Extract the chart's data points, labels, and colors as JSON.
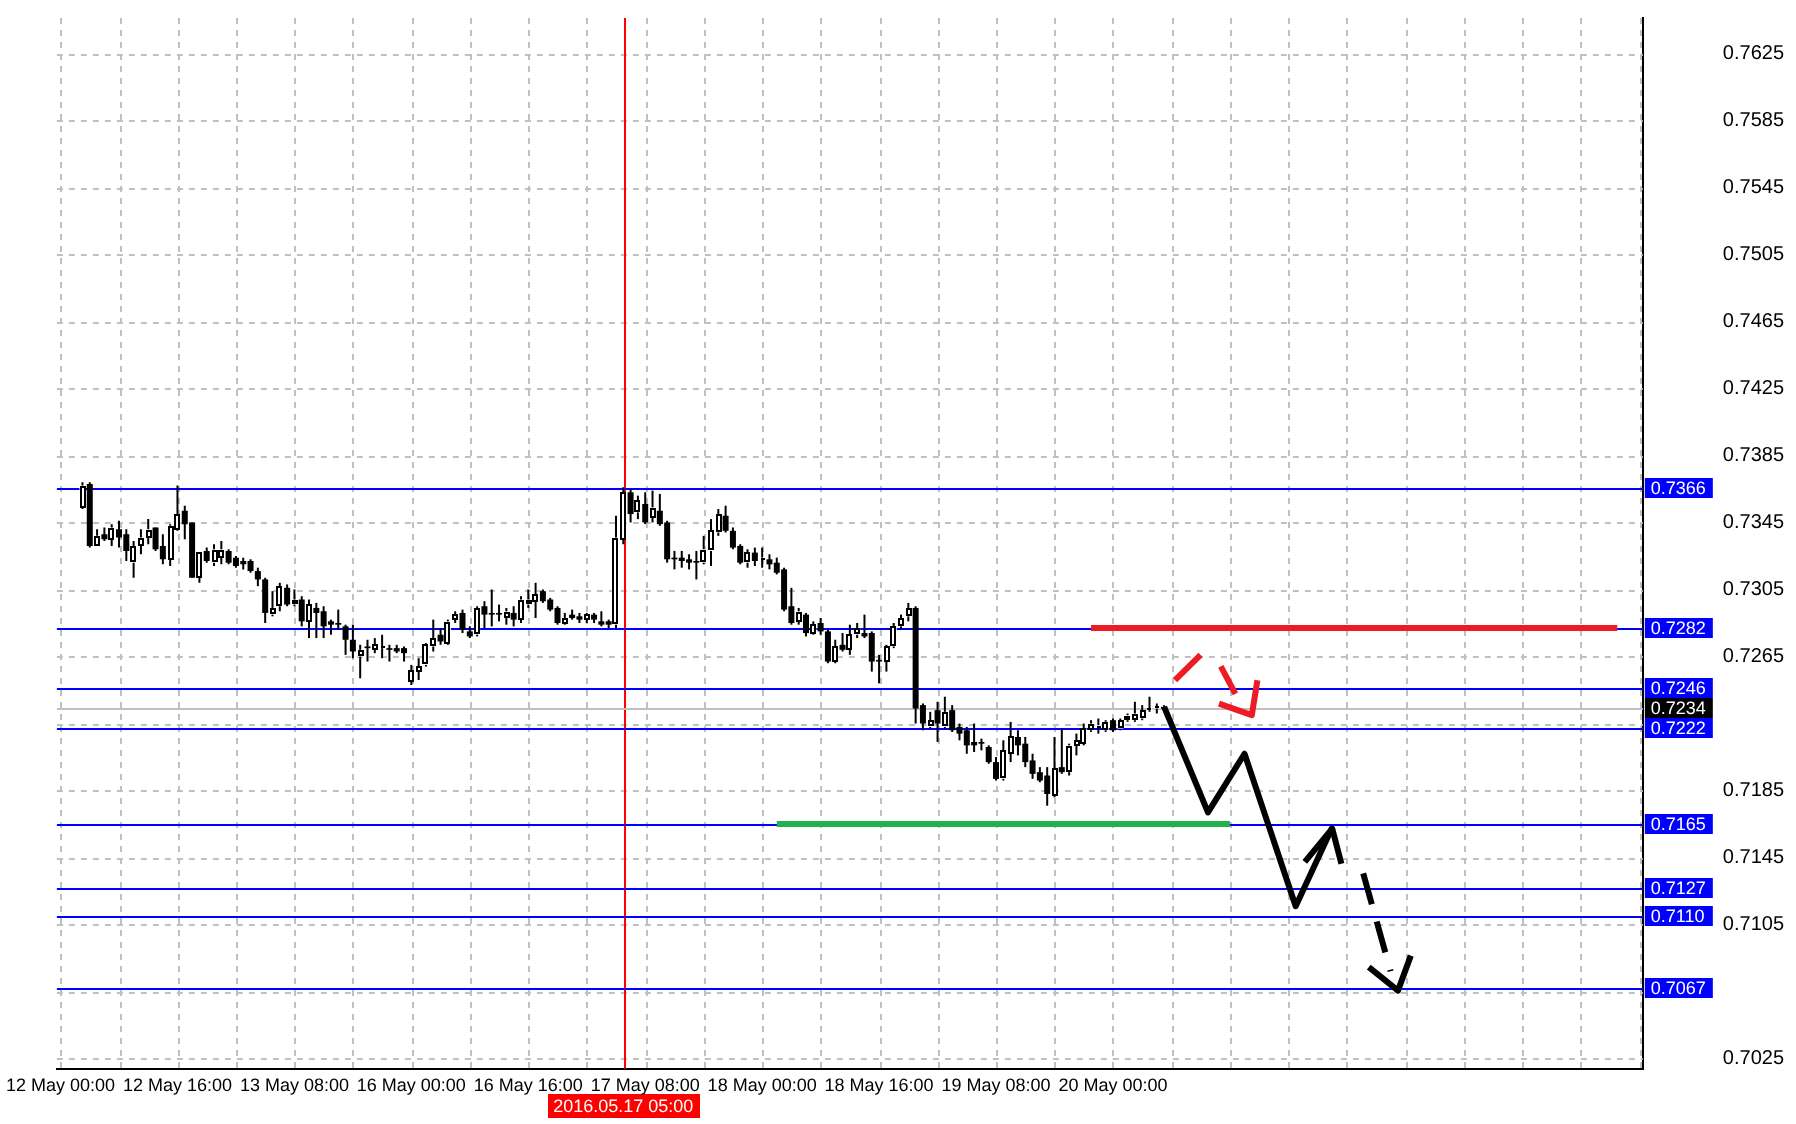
{
  "chart_data": {
    "type": "candlestick",
    "categories": [
      "12 May 00:00",
      null,
      null,
      null,
      null,
      null,
      null,
      null,
      null,
      null,
      null,
      null,
      null,
      null,
      null,
      null,
      "12 May 16:00",
      null,
      null,
      null,
      null,
      null,
      null,
      null,
      null,
      null,
      null,
      null,
      null,
      null,
      null,
      null,
      "13 May 08:00",
      null,
      null,
      null,
      null,
      null,
      null,
      null,
      null,
      null,
      null,
      null,
      null,
      null,
      null,
      null,
      "16 May 00:00",
      null,
      null,
      null,
      null,
      null,
      null,
      null,
      null,
      null,
      null,
      null,
      null,
      null,
      null,
      null,
      "16 May 16:00",
      null,
      null,
      null,
      null,
      null,
      null,
      null,
      null,
      null,
      null,
      null,
      null,
      "2016.05.17 05:00",
      null,
      null,
      "17 May 08:00",
      null,
      null,
      null,
      null,
      null,
      null,
      null,
      null,
      null,
      null,
      null,
      null,
      null,
      null,
      null,
      "18 May 00:00",
      null,
      null,
      null,
      null,
      null,
      null,
      null,
      null,
      null,
      null,
      null,
      null,
      null,
      null,
      null,
      "18 May 16:00",
      null,
      null,
      null,
      null,
      null,
      null,
      null,
      null,
      null,
      null,
      null,
      null,
      null,
      null,
      null,
      "19 May 08:00",
      null,
      null,
      null,
      null,
      null,
      null,
      null,
      null,
      null,
      null,
      null,
      null,
      null,
      null,
      null,
      "20 May 00:00",
      null,
      null,
      null,
      null,
      null,
      null,
      null,
      null,
      null,
      null,
      null,
      null,
      null,
      null,
      null,
      null,
      null,
      null,
      null,
      null,
      null,
      null,
      null,
      null,
      null,
      null,
      null,
      null,
      null,
      null,
      null,
      null,
      null,
      null,
      null,
      null,
      null,
      null,
      null,
      null,
      null,
      null,
      null,
      null,
      null,
      null,
      null,
      null,
      null,
      null,
      null,
      null,
      null,
      null,
      null,
      null,
      null,
      null,
      null,
      null,
      null,
      null,
      null,
      null,
      null,
      null,
      null,
      null,
      null,
      null,
      null,
      null
    ],
    "ohlc": [
      null,
      null,
      null,
      [
        0.7354,
        0.7369,
        0.7353,
        0.7367
      ],
      [
        0.7368,
        0.7369,
        0.733,
        0.7331
      ],
      [
        0.7331,
        0.7341,
        0.7331,
        0.7337
      ],
      [
        0.7338,
        0.7342,
        0.7334,
        0.7335
      ],
      [
        0.7335,
        0.7344,
        0.7331,
        0.7342
      ],
      [
        0.7341,
        0.7346,
        0.733,
        0.7336
      ],
      [
        0.7338,
        0.7341,
        0.7322,
        0.7328
      ],
      [
        0.7321,
        0.7334,
        0.7312,
        0.7331
      ],
      [
        0.7331,
        0.7341,
        0.7326,
        0.7336
      ],
      [
        0.7336,
        0.7347,
        0.7332,
        0.7341
      ],
      [
        0.7342,
        0.7342,
        0.7328,
        0.7329
      ],
      [
        0.7331,
        0.7338,
        0.732,
        0.7323
      ],
      [
        0.7323,
        0.7344,
        0.7319,
        0.7343
      ],
      [
        0.7341,
        0.7367,
        0.734,
        0.735
      ],
      [
        0.7352,
        0.7355,
        0.7335,
        0.7344
      ],
      [
        0.7345,
        0.7345,
        0.7312,
        0.7312
      ],
      [
        0.7312,
        0.7327,
        0.7309,
        0.7327
      ],
      [
        0.7328,
        0.733,
        0.7321,
        0.7322
      ],
      [
        0.7321,
        0.7332,
        0.7319,
        0.7329
      ],
      [
        0.7324,
        0.7334,
        0.732,
        0.7329
      ],
      [
        0.7328,
        0.7329,
        0.732,
        0.7321
      ],
      [
        0.7324,
        0.7325,
        0.7318,
        0.7319
      ],
      [
        0.7322,
        0.7324,
        0.7317,
        0.732
      ],
      [
        0.7322,
        0.7323,
        0.7315,
        0.7316
      ],
      [
        0.7316,
        0.7318,
        0.7307,
        0.7311
      ],
      [
        0.7311,
        0.7312,
        0.7285,
        0.7291
      ],
      [
        0.729,
        0.7304,
        0.7289,
        0.7294
      ],
      [
        0.7295,
        0.7309,
        0.7292,
        0.7307
      ],
      [
        0.7306,
        0.7308,
        0.7295,
        0.7296
      ],
      [
        0.7296,
        0.7305,
        0.7295,
        0.7299
      ],
      [
        0.7299,
        0.7301,
        0.7283,
        0.7286
      ],
      [
        0.7286,
        0.7299,
        0.7276,
        0.7296
      ],
      [
        0.7294,
        0.7297,
        0.7276,
        0.7291
      ],
      [
        0.7292,
        0.7295,
        0.7276,
        0.7283
      ],
      [
        0.7286,
        0.7287,
        0.7278,
        0.7284
      ],
      [
        0.7285,
        0.7293,
        0.7281,
        0.7284
      ],
      [
        0.7283,
        0.7284,
        0.7266,
        0.7275
      ],
      [
        0.7275,
        0.7284,
        0.7264,
        0.7268
      ],
      [
        0.7265,
        0.7272,
        0.7252,
        0.7269
      ],
      [
        0.7271,
        0.7275,
        0.7262,
        0.727
      ],
      [
        0.7269,
        0.7276,
        0.7267,
        0.7272
      ],
      [
        0.727,
        0.7278,
        0.7264,
        0.7271
      ],
      [
        0.727,
        0.7272,
        0.7262,
        0.7269
      ],
      [
        0.727,
        0.7272,
        0.7267,
        0.7268
      ],
      [
        0.727,
        0.7271,
        0.7262,
        0.7267
      ],
      [
        0.725,
        0.726,
        0.7248,
        0.7257
      ],
      [
        0.7256,
        0.7264,
        0.7251,
        0.7259
      ],
      [
        0.726,
        0.7273,
        0.7259,
        0.7272
      ],
      [
        0.7271,
        0.7287,
        0.7268,
        0.7276
      ],
      [
        0.7278,
        0.7282,
        0.7272,
        0.7274
      ],
      [
        0.7273,
        0.7287,
        0.7272,
        0.7286
      ],
      [
        0.7287,
        0.7292,
        0.7285,
        0.729
      ],
      [
        0.7291,
        0.7293,
        0.7279,
        0.7281
      ],
      [
        0.728,
        0.7283,
        0.7276,
        0.7277
      ],
      [
        0.7278,
        0.7295,
        0.7277,
        0.7294
      ],
      [
        0.7295,
        0.7298,
        0.7282,
        0.729
      ],
      [
        0.7291,
        0.7305,
        0.7283,
        0.729
      ],
      [
        0.7291,
        0.7296,
        0.7286,
        0.729
      ],
      [
        0.7288,
        0.7294,
        0.7284,
        0.7292
      ],
      [
        0.7291,
        0.7295,
        0.7283,
        0.7287
      ],
      [
        0.7287,
        0.7301,
        0.7285,
        0.7299
      ],
      [
        0.7296,
        0.7305,
        0.7294,
        0.7299
      ],
      [
        0.7298,
        0.7309,
        0.7288,
        0.7302
      ],
      [
        0.7304,
        0.7305,
        0.7297,
        0.7298
      ],
      [
        0.7299,
        0.73,
        0.7292,
        0.7293
      ],
      [
        0.7294,
        0.7295,
        0.7284,
        0.7285
      ],
      [
        0.7285,
        0.7291,
        0.7284,
        0.7288
      ],
      [
        0.729,
        0.7293,
        0.7287,
        0.7288
      ],
      [
        0.7289,
        0.7291,
        0.7285,
        0.7287
      ],
      [
        0.7287,
        0.7291,
        0.7285,
        0.729
      ],
      [
        0.729,
        0.7291,
        0.7285,
        0.7287
      ],
      [
        0.7286,
        0.7292,
        0.7283,
        0.7284
      ],
      [
        0.7286,
        0.7287,
        0.7282,
        0.7284
      ],
      [
        0.7284,
        0.7349,
        0.7282,
        0.7336
      ],
      [
        0.7335,
        0.7366,
        0.7332,
        0.7363
      ],
      [
        0.7363,
        0.7365,
        0.7345,
        0.735
      ],
      [
        0.7351,
        0.7361,
        0.7347,
        0.7358
      ],
      [
        0.7356,
        0.7363,
        0.7344,
        0.7345
      ],
      [
        0.7348,
        0.7364,
        0.7345,
        0.7354
      ],
      [
        0.7352,
        0.7362,
        0.7343,
        0.7344
      ],
      [
        0.7345,
        0.7346,
        0.7321,
        0.7323
      ],
      [
        0.7324,
        0.7328,
        0.7317,
        0.7323
      ],
      [
        0.7324,
        0.7328,
        0.7318,
        0.7322
      ],
      [
        0.7323,
        0.7326,
        0.7317,
        0.7321
      ],
      [
        0.7322,
        0.7328,
        0.7311,
        0.7321
      ],
      [
        0.7321,
        0.7337,
        0.732,
        0.7329
      ],
      [
        0.7328,
        0.7347,
        0.7319,
        0.734
      ],
      [
        0.7339,
        0.7353,
        0.7337,
        0.735
      ],
      [
        0.7349,
        0.7355,
        0.7339,
        0.734
      ],
      [
        0.734,
        0.7342,
        0.7329,
        0.733
      ],
      [
        0.7331,
        0.7332,
        0.732,
        0.7321
      ],
      [
        0.7321,
        0.7329,
        0.7318,
        0.7327
      ],
      [
        0.7327,
        0.733,
        0.7319,
        0.7322
      ],
      [
        0.7323,
        0.733,
        0.7318,
        0.7324
      ],
      [
        0.7323,
        0.7326,
        0.7317,
        0.732
      ],
      [
        0.7321,
        0.7324,
        0.7314,
        0.7315
      ],
      [
        0.7317,
        0.7318,
        0.7292,
        0.7293
      ],
      [
        0.7295,
        0.7306,
        0.7284,
        0.7285
      ],
      [
        0.7286,
        0.7294,
        0.7284,
        0.7292
      ],
      [
        0.729,
        0.7291,
        0.7277,
        0.7279
      ],
      [
        0.7279,
        0.7286,
        0.7278,
        0.7284
      ],
      [
        0.7285,
        0.7288,
        0.7278,
        0.728
      ],
      [
        0.728,
        0.7281,
        0.7261,
        0.7262
      ],
      [
        0.7262,
        0.7275,
        0.7261,
        0.7271
      ],
      [
        0.7272,
        0.7279,
        0.7268,
        0.7269
      ],
      [
        0.7269,
        0.7284,
        0.7266,
        0.7278
      ],
      [
        0.7278,
        0.7285,
        0.7276,
        0.7282
      ],
      [
        0.7279,
        0.729,
        0.7276,
        0.7277
      ],
      [
        0.7279,
        0.728,
        0.7256,
        0.7262
      ],
      [
        0.7263,
        0.7266,
        0.7249,
        0.7262
      ],
      [
        0.7262,
        0.7272,
        0.7256,
        0.7271
      ],
      [
        0.7271,
        0.7285,
        0.727,
        0.7283
      ],
      [
        0.7283,
        0.729,
        0.7281,
        0.7288
      ],
      [
        0.7289,
        0.7297,
        0.7286,
        0.7294
      ],
      [
        0.7294,
        0.7295,
        0.7225,
        0.7234
      ],
      [
        0.7236,
        0.7237,
        0.7221,
        0.7225
      ],
      [
        0.7223,
        0.7232,
        0.7222,
        0.7227
      ],
      [
        0.7233,
        0.7238,
        0.7214,
        0.7225
      ],
      [
        0.7223,
        0.7241,
        0.7222,
        0.7232
      ],
      [
        0.7233,
        0.7236,
        0.722,
        0.7221
      ],
      [
        0.7223,
        0.7225,
        0.7215,
        0.7219
      ],
      [
        0.7221,
        0.7223,
        0.7207,
        0.7212
      ],
      [
        0.7214,
        0.7225,
        0.7208,
        0.7212
      ],
      [
        0.7214,
        0.7216,
        0.7209,
        0.7213
      ],
      [
        0.7211,
        0.7212,
        0.7201,
        0.7202
      ],
      [
        0.7202,
        0.7205,
        0.7191,
        0.7192
      ],
      [
        0.7192,
        0.7215,
        0.7191,
        0.7209
      ],
      [
        0.7207,
        0.7226,
        0.7202,
        0.7217
      ],
      [
        0.7217,
        0.7221,
        0.7206,
        0.7212
      ],
      [
        0.7213,
        0.7217,
        0.7199,
        0.7202
      ],
      [
        0.7203,
        0.7207,
        0.7192,
        0.7195
      ],
      [
        0.7196,
        0.7199,
        0.719,
        0.7191
      ],
      [
        0.7194,
        0.7199,
        0.7176,
        0.7183
      ],
      [
        0.7182,
        0.7217,
        0.7181,
        0.7198
      ],
      [
        0.7199,
        0.7222,
        0.7195,
        0.7196
      ],
      [
        0.7196,
        0.7213,
        0.7194,
        0.7212
      ],
      [
        0.7212,
        0.7219,
        0.7206,
        0.7215
      ],
      [
        0.7213,
        0.7225,
        0.7212,
        0.7222
      ],
      [
        0.7221,
        0.7227,
        0.722,
        0.7225
      ],
      [
        0.7223,
        0.7228,
        0.7219,
        0.7224
      ],
      [
        0.7221,
        0.7227,
        0.722,
        0.7226
      ],
      [
        0.7227,
        0.7228,
        0.722,
        0.7221
      ],
      [
        0.7222,
        0.7228,
        0.7221,
        0.7227
      ],
      [
        0.7227,
        0.7231,
        0.7226,
        0.723
      ],
      [
        0.7227,
        0.7238,
        0.7226,
        0.7231
      ],
      [
        0.7228,
        0.7236,
        0.7227,
        0.7233
      ],
      [
        0.7233,
        0.7241,
        0.7232,
        0.7234
      ],
      [
        0.7234,
        0.7237,
        0.7231,
        0.7235
      ],
      [
        0.7235,
        0.7236,
        0.7232,
        0.7234
      ],
      null,
      null,
      null,
      null,
      null,
      null,
      null,
      null,
      null,
      null,
      null,
      null,
      null,
      null,
      null,
      null,
      null,
      null,
      null,
      null,
      null,
      null,
      null,
      null,
      null,
      null,
      null,
      null,
      null,
      null,
      null,
      null,
      null,
      null,
      null,
      null,
      null,
      null,
      null,
      null,
      null,
      null,
      null,
      null,
      null,
      null,
      null,
      null,
      null,
      null,
      null,
      null,
      null,
      null,
      null,
      null,
      null,
      null,
      null,
      null,
      null,
      null,
      null,
      null,
      null
    ],
    "colors": [
      null,
      null,
      null,
      "#ffffff",
      "#000000",
      "#ffffff",
      "#000000",
      "#ffffff",
      "#000000",
      "#000000",
      "#ffffff",
      "#ffffff",
      "#ffffff",
      "#000000",
      "#000000",
      "#ffffff",
      "#ffffff",
      "#000000",
      "#000000",
      "#ffffff",
      "#000000",
      "#ffffff",
      "#ffffff",
      "#000000",
      "#000000",
      "#000000",
      "#000000",
      "#000000",
      "#000000",
      "#ffffff",
      "#ffffff",
      "#000000",
      "#ffffff",
      "#000000",
      "#ffffff",
      "#000000",
      "#000000",
      "#000000",
      "#000000",
      "#000000",
      "#000000",
      "#ffffff",
      "#000000",
      "#ffffff",
      "#ffffff",
      "#000000",
      "#000000",
      "#000000",
      "#ffffff",
      "#ffffff",
      "#ffffff",
      "#ffffff",
      "#000000",
      "#ffffff",
      "#ffffff",
      "#000000",
      "#000000",
      "#ffffff",
      "#000000",
      "#000000",
      "#000000",
      "#ffffff",
      "#000000",
      "#ffffff",
      "#ffffff",
      "#ffffff",
      "#000000",
      "#000000",
      "#000000",
      "#ffffff",
      "#000000",
      "#000000",
      "#ffffff",
      "#000000",
      "#000000",
      "#000000",
      "#ffffff",
      "#ffffff",
      "#000000",
      "#ffffff",
      "#000000",
      "#ffffff",
      "#000000",
      "#000000",
      "#000000",
      "#000000",
      "#000000",
      "#000000",
      "#ffffff",
      "#ffffff",
      "#ffffff",
      "#000000",
      "#000000",
      "#000000",
      "#ffffff",
      "#000000",
      "#ffffff",
      "#000000",
      "#000000",
      "#000000",
      "#000000",
      "#ffffff",
      "#000000",
      "#ffffff",
      "#000000",
      "#000000",
      "#ffffff",
      "#000000",
      "#ffffff",
      "#ffffff",
      "#000000",
      "#000000",
      "#000000",
      "#ffffff",
      "#ffffff",
      "#ffffff",
      "#ffffff",
      "#000000",
      "#000000",
      "#ffffff",
      "#000000",
      "#ffffff",
      "#000000",
      "#000000",
      "#000000",
      "#000000",
      "#000000",
      "#000000",
      "#000000",
      "#ffffff",
      "#ffffff",
      "#000000",
      "#000000",
      "#000000",
      "#000000",
      "#000000",
      "#ffffff",
      "#000000",
      "#ffffff",
      "#ffffff",
      "#ffffff",
      "#ffffff",
      "#ffffff",
      "#ffffff",
      "#000000",
      "#ffffff",
      "#ffffff",
      "#ffffff",
      "#ffffff",
      "#ffffff",
      "#ffffff",
      "#000000",
      null,
      null,
      null,
      null,
      null,
      null,
      null,
      null,
      null,
      null,
      null,
      null,
      null,
      null,
      null,
      null,
      null,
      null,
      null,
      null,
      null,
      null,
      null,
      null,
      null,
      null,
      null,
      null,
      null,
      null,
      null,
      null,
      null,
      null,
      null,
      null,
      null,
      null,
      null,
      null,
      null,
      null,
      null,
      null,
      null,
      null,
      null,
      null,
      null,
      null,
      null,
      null,
      null,
      null,
      null,
      null,
      null,
      null,
      null,
      null,
      null,
      null,
      null,
      null,
      null
    ],
    "series": [
      {
        "type": "line",
        "color": "#ed1c24",
        "values": [
          null,
          null,
          null,
          null,
          null,
          null,
          null,
          null,
          null,
          null,
          null,
          null,
          null,
          null,
          null,
          null,
          null,
          null,
          null,
          null,
          null,
          null,
          null,
          null,
          null,
          null,
          null,
          null,
          null,
          null,
          null,
          null,
          null,
          null,
          null,
          null,
          null,
          null,
          null,
          null,
          null,
          null,
          null,
          null,
          null,
          null,
          null,
          null,
          null,
          null,
          null,
          null,
          null,
          null,
          null,
          null,
          null,
          null,
          null,
          null,
          null,
          null,
          null,
          null,
          null,
          null,
          null,
          null,
          null,
          null,
          null,
          null,
          null,
          null,
          null,
          null,
          null,
          null,
          null,
          null,
          null,
          null,
          null,
          null,
          null,
          null,
          null,
          null,
          null,
          null,
          null,
          null,
          null,
          null,
          null,
          null,
          null,
          null,
          null,
          null,
          null,
          null,
          null,
          null,
          null,
          null,
          null,
          null,
          null,
          null,
          null,
          null,
          null,
          null,
          null,
          null,
          null,
          null,
          null,
          null,
          null,
          null,
          null,
          null,
          null,
          null,
          null,
          null,
          null,
          null,
          null,
          null,
          null,
          null,
          null,
          null,
          null,
          null,
          null,
          null,
          null,
          0.7282,
          0.7282,
          0.7282,
          0.7282,
          0.7282,
          0.7282,
          0.7282,
          0.7282,
          0.7282,
          0.7282,
          0.7282,
          0.7282,
          0.7282,
          0.7282,
          0.7282,
          0.7282,
          0.7282,
          0.7282,
          0.7282,
          0.7282,
          0.7282,
          0.7282,
          0.7282,
          0.7282,
          0.7282,
          0.7282,
          0.7282,
          0.7282,
          0.7282,
          0.7282,
          0.7282,
          0.7282,
          0.7282,
          0.7282,
          0.7282,
          0.7282,
          0.7282,
          0.7282,
          0.7282,
          0.7282,
          0.7282,
          0.7282,
          0.7282,
          0.7282,
          0.7282,
          0.7282,
          0.7282,
          0.7282,
          0.7282,
          0.7282,
          0.7282,
          0.7282,
          0.7282,
          0.7282,
          0.7282,
          0.7282,
          0.7282,
          0.7282,
          0.7282,
          0.7282,
          0.7282,
          0.7282,
          0.7282,
          0.7282,
          0.7282,
          0.7282,
          0.7282,
          0.7282,
          0.7282,
          0.7282,
          0.7282,
          0.7282,
          0.7282,
          null,
          null,
          null
        ]
      },
      {
        "type": "line",
        "color": "#22b14c",
        "values": [
          null,
          null,
          null,
          null,
          null,
          null,
          null,
          null,
          null,
          null,
          null,
          null,
          null,
          null,
          null,
          null,
          null,
          null,
          null,
          null,
          null,
          null,
          null,
          null,
          null,
          null,
          null,
          null,
          null,
          null,
          null,
          null,
          null,
          null,
          null,
          null,
          null,
          null,
          null,
          null,
          null,
          null,
          null,
          null,
          null,
          null,
          null,
          null,
          null,
          null,
          null,
          null,
          null,
          null,
          null,
          null,
          null,
          null,
          null,
          null,
          null,
          null,
          null,
          null,
          null,
          null,
          null,
          null,
          null,
          null,
          null,
          null,
          null,
          null,
          null,
          null,
          null,
          null,
          null,
          null,
          null,
          null,
          null,
          null,
          null,
          null,
          null,
          null,
          null,
          null,
          null,
          null,
          null,
          null,
          null,
          null,
          null,
          null,
          0.7165,
          0.7165,
          0.7165,
          0.7165,
          0.7165,
          0.7165,
          0.7165,
          0.7165,
          0.7165,
          0.7165,
          0.7165,
          0.7165,
          0.7165,
          0.7165,
          0.7165,
          0.7165,
          0.7165,
          0.7165,
          0.7165,
          0.7165,
          0.7165,
          0.7165,
          0.7165,
          0.7165,
          0.7165,
          0.7165,
          0.7165,
          0.7165,
          0.7165,
          0.7165,
          0.7165,
          0.7165,
          0.7165,
          0.7165,
          0.7165,
          0.7165,
          0.7165,
          0.7165,
          0.7165,
          0.7165,
          0.7165,
          0.7165,
          0.7165,
          0.7165,
          0.7165,
          0.7165,
          0.7165,
          0.7165,
          0.7165,
          0.7165,
          0.7165,
          0.7165,
          0.7165,
          0.7165,
          0.7165,
          0.7165,
          0.7165,
          0.7165,
          0.7165,
          0.7165,
          0.7165,
          0.7165,
          0.7165,
          null,
          null,
          null,
          null,
          null,
          null,
          null,
          null,
          null,
          null,
          null,
          null,
          null,
          null,
          null,
          null,
          null,
          null,
          null,
          null,
          null,
          null,
          null,
          null,
          null,
          null,
          null,
          null,
          null,
          null,
          null,
          null,
          null,
          null,
          null,
          null,
          null,
          null,
          null,
          null,
          null,
          null,
          null,
          null,
          null,
          null,
          null,
          null,
          null,
          null,
          null,
          null,
          null,
          null,
          null,
          null
        ]
      },
      {
        "type": "line",
        "color": "#000000",
        "values": [
          null,
          null,
          null,
          null,
          null,
          null,
          null,
          null,
          null,
          null,
          null,
          null,
          null,
          null,
          null,
          null,
          null,
          null,
          null,
          null,
          null,
          null,
          null,
          null,
          null,
          null,
          null,
          null,
          null,
          null,
          null,
          null,
          null,
          null,
          null,
          null,
          null,
          null,
          null,
          null,
          null,
          null,
          null,
          null,
          null,
          null,
          null,
          null,
          null,
          null,
          null,
          null,
          null,
          null,
          null,
          null,
          null,
          null,
          null,
          null,
          null,
          null,
          null,
          null,
          null,
          null,
          null,
          null,
          null,
          null,
          null,
          null,
          null,
          null,
          null,
          null,
          null,
          null,
          null,
          null,
          null,
          null,
          null,
          null,
          null,
          null,
          null,
          null,
          null,
          null,
          null,
          null,
          null,
          null,
          null,
          null,
          null,
          null,
          null,
          null,
          null,
          null,
          null,
          null,
          null,
          null,
          null,
          null,
          null,
          null,
          null,
          null,
          null,
          null,
          null,
          null,
          null,
          null,
          null,
          null,
          null,
          null,
          null,
          null,
          null,
          null,
          null,
          null,
          null,
          null,
          null,
          null,
          null,
          null,
          null,
          null,
          null,
          null,
          null,
          null,
          null,
          null,
          null,
          null,
          null,
          null,
          null,
          null,
          null,
          null,
          null,
          0.7235,
          null,
          null,
          null,
          null,
          null,
          0.7172,
          null,
          null,
          null,
          null,
          0.7207,
          null,
          null,
          null,
          null,
          null,
          null,
          0.7116,
          null,
          null,
          null,
          null,
          0.7163,
          null,
          null,
          null,
          null,
          null,
          null,
          null,
          null,
          null,
          null,
          null,
          null,
          null,
          null,
          null,
          null,
          null,
          null,
          null,
          null,
          null,
          null,
          null,
          null,
          null,
          null,
          null,
          null,
          null,
          null,
          null,
          null,
          null,
          null,
          null,
          null,
          null,
          null,
          null,
          null,
          null,
          null
        ]
      }
    ],
    "ylim": [
      0.7019,
      0.7646
    ],
    "yticks": [
      0.7025,
      {
        "value": 0.7065,
        "label": null
      },
      0.7105,
      0.7145,
      0.7185,
      {
        "value": 0.7225,
        "label": null
      },
      0.7265,
      0.7305,
      0.7345,
      0.7385,
      0.7425,
      0.7465,
      0.7505,
      0.7545,
      0.7585,
      0.7625
    ],
    "ref_lines": [
      {
        "axis": "x",
        "value": "2016.05.17 05:00",
        "color": "#ff0000"
      },
      {
        "axis": "y",
        "value": 0.7366,
        "label": "0.7366",
        "color": "#0000ff"
      },
      {
        "axis": "y",
        "value": 0.7282,
        "label": "0.7282",
        "color": "#0000ff"
      },
      {
        "axis": "y",
        "value": 0.7246,
        "label": "0.7246",
        "color": "#0000ff"
      },
      {
        "axis": "y",
        "value": 0.7234,
        "label": "0.7234",
        "color": "#c0c0c0"
      },
      {
        "axis": "y",
        "value": 0.7222,
        "label": "0.7222",
        "color": "#0000ff"
      },
      {
        "axis": "y",
        "value": 0.7165,
        "label": "0.7165",
        "color": "#0000ff"
      },
      {
        "axis": "y",
        "value": 0.7127,
        "label": "0.7127",
        "color": "#0000ff"
      },
      {
        "axis": "y",
        "value": 0.711,
        "label": "0.7110",
        "color": "#0000ff"
      },
      {
        "axis": "y",
        "value": 0.7067,
        "label": "0.7067",
        "color": "#0000ff"
      }
    ],
    "grid": true
  }
}
